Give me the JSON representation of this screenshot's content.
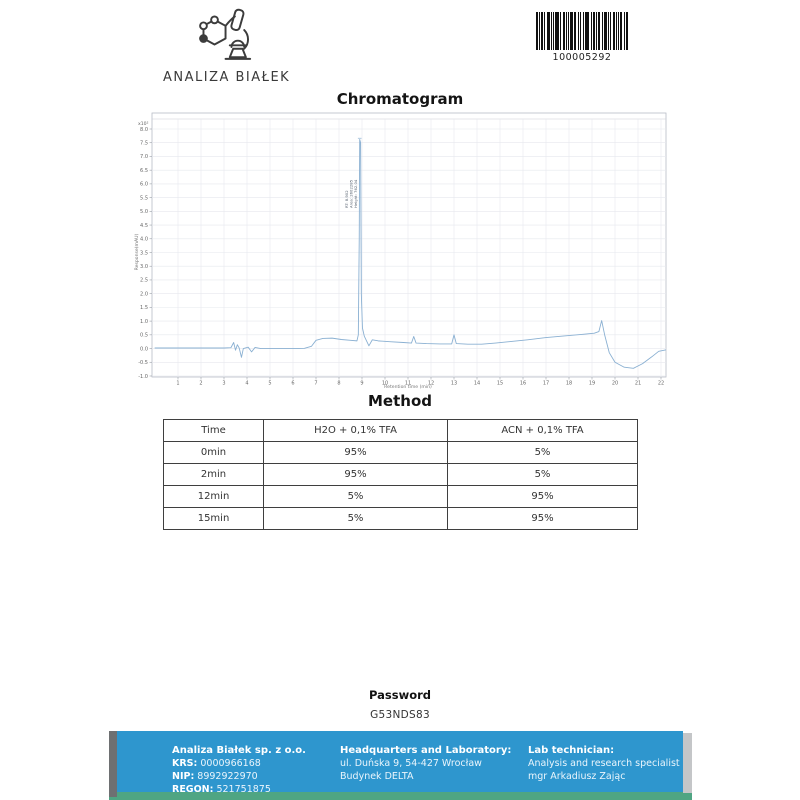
{
  "header": {
    "logo_text": "ANALIZA BIAŁEK",
    "barcode_number": "100005292"
  },
  "chromatogram": {
    "title": "Chromatogram"
  },
  "chart_data": {
    "type": "line",
    "title": "Chromatogram",
    "xlabel": "Retention time (min)",
    "ylabel": "Response(mAU)",
    "y_multiplier_label": "x10²",
    "xlim": [
      0,
      22.2
    ],
    "ylim": [
      -1.0,
      8.0
    ],
    "grid": true,
    "line_color": "#8ab0d2",
    "x_ticks": [
      1,
      2,
      3,
      4,
      5,
      6,
      7,
      8,
      9,
      10,
      11,
      12,
      13,
      14,
      15,
      16,
      17,
      18,
      19,
      20,
      21,
      22
    ],
    "y_ticks": [
      "8.0",
      "7.5",
      "7.0",
      "6.5",
      "6.0",
      "5.5",
      "5.0",
      "4.5",
      "4.0",
      "3.5",
      "3.0",
      "2.5",
      "2.0",
      "1.5",
      "1.0",
      "0.5",
      "0.0",
      "-0.5",
      "-1.0"
    ],
    "peak_labels": [
      "RT: 8.902",
      "Area: 2602285",
      "Height: 762.04"
    ],
    "points": [
      [
        0,
        0.02
      ],
      [
        1,
        0.02
      ],
      [
        2,
        0.02
      ],
      [
        3,
        0.02
      ],
      [
        3.3,
        0.03
      ],
      [
        3.42,
        0.22
      ],
      [
        3.5,
        -0.06
      ],
      [
        3.58,
        0.14
      ],
      [
        3.66,
        0.02
      ],
      [
        3.76,
        -0.32
      ],
      [
        3.84,
        0.0
      ],
      [
        4.05,
        0.05
      ],
      [
        4.2,
        -0.12
      ],
      [
        4.35,
        0.04
      ],
      [
        4.6,
        0.0
      ],
      [
        5,
        0.0
      ],
      [
        6,
        0.0
      ],
      [
        6.5,
        0.01
      ],
      [
        6.8,
        0.08
      ],
      [
        7.0,
        0.3
      ],
      [
        7.3,
        0.37
      ],
      [
        7.7,
        0.38
      ],
      [
        8.1,
        0.33
      ],
      [
        8.5,
        0.3
      ],
      [
        8.78,
        0.28
      ],
      [
        8.84,
        0.5
      ],
      [
        8.88,
        4.0
      ],
      [
        8.9,
        7.62
      ],
      [
        8.94,
        7.5
      ],
      [
        8.97,
        2.0
      ],
      [
        9.02,
        0.75
      ],
      [
        9.1,
        0.45
      ],
      [
        9.3,
        0.1
      ],
      [
        9.45,
        0.32
      ],
      [
        9.7,
        0.28
      ],
      [
        10.2,
        0.25
      ],
      [
        10.8,
        0.22
      ],
      [
        11.15,
        0.2
      ],
      [
        11.25,
        0.44
      ],
      [
        11.35,
        0.2
      ],
      [
        11.8,
        0.18
      ],
      [
        12.4,
        0.17
      ],
      [
        12.9,
        0.17
      ],
      [
        13.0,
        0.5
      ],
      [
        13.1,
        0.18
      ],
      [
        13.6,
        0.16
      ],
      [
        14.2,
        0.16
      ],
      [
        14.8,
        0.2
      ],
      [
        15.5,
        0.26
      ],
      [
        16.2,
        0.32
      ],
      [
        17,
        0.4
      ],
      [
        17.8,
        0.46
      ],
      [
        18.6,
        0.52
      ],
      [
        19.1,
        0.56
      ],
      [
        19.3,
        0.62
      ],
      [
        19.42,
        1.02
      ],
      [
        19.55,
        0.5
      ],
      [
        19.75,
        -0.15
      ],
      [
        20.0,
        -0.5
      ],
      [
        20.4,
        -0.68
      ],
      [
        20.8,
        -0.72
      ],
      [
        21.2,
        -0.55
      ],
      [
        21.6,
        -0.3
      ],
      [
        21.9,
        -0.1
      ],
      [
        22.2,
        -0.05
      ]
    ]
  },
  "method": {
    "title": "Method",
    "table": {
      "headers": [
        "Time",
        "H2O + 0,1% TFA",
        "ACN + 0,1% TFA"
      ],
      "rows": [
        [
          "0min",
          "95%",
          "5%"
        ],
        [
          "2min",
          "95%",
          "5%"
        ],
        [
          "12min",
          "5%",
          "95%"
        ],
        [
          "15min",
          "5%",
          "95%"
        ]
      ]
    }
  },
  "password": {
    "label": "Password",
    "value": "G53NDS83"
  },
  "footer": {
    "colors": {
      "blue": "#2E96CE",
      "teal": "#4FA583"
    },
    "company": {
      "name": "Analiza Białek sp. z o.o.",
      "krs_label": "KRS:",
      "krs": "0000966168",
      "nip_label": "NIP:",
      "nip": "8992922970",
      "regon_label": "REGON:",
      "regon": "521751875"
    },
    "headquarters": {
      "title": "Headquarters and Laboratory:",
      "line1": "ul. Duńska 9, 54-427 Wrocław",
      "line2": "Budynek DELTA"
    },
    "technician": {
      "title": "Lab technician:",
      "line1": "Analysis and research specialist",
      "line2": "mgr Arkadiusz Zając"
    }
  }
}
